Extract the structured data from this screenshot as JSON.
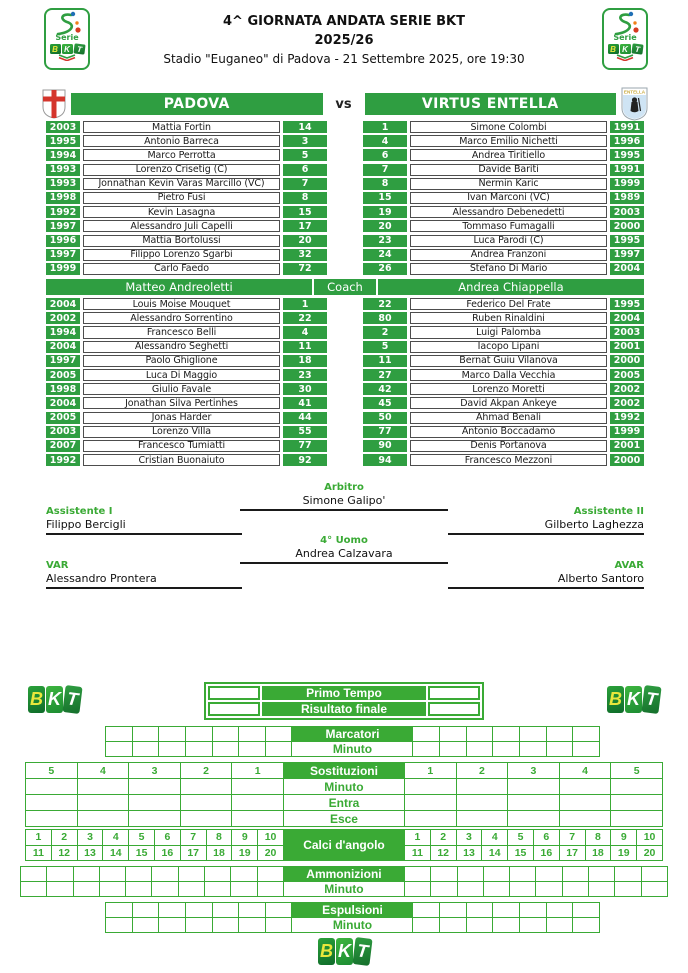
{
  "header": {
    "competition": "4^ GIORNATA ANDATA SERIE BKT",
    "season": "2025/26",
    "venue_line": "Stadio \"Euganeo\" di Padova - 21 Settembre 2025, ore 19:30"
  },
  "teams": {
    "home_name": "PADOVA",
    "away_name": "VIRTUS ENTELLA",
    "vs_label": "vs",
    "coach_label": "Coach",
    "home_coach": "Matteo Andreoletti",
    "away_coach": "Andrea Chiappella"
  },
  "home_starters": [
    {
      "year": "2003",
      "name": "Mattia Fortin",
      "num": "14"
    },
    {
      "year": "1995",
      "name": "Antonio Barreca",
      "num": "3"
    },
    {
      "year": "1994",
      "name": "Marco Perrotta",
      "num": "5"
    },
    {
      "year": "1993",
      "name": "Lorenzo Crisetig (C)",
      "num": "6"
    },
    {
      "year": "1993",
      "name": "Jonnathan Kevin Varas Marcillo (VC)",
      "num": "7"
    },
    {
      "year": "1998",
      "name": "Pietro Fusi",
      "num": "8"
    },
    {
      "year": "1992",
      "name": "Kevin Lasagna",
      "num": "15"
    },
    {
      "year": "1997",
      "name": "Alessandro Juli Capelli",
      "num": "17"
    },
    {
      "year": "1996",
      "name": "Mattia Bortolussi",
      "num": "20"
    },
    {
      "year": "1997",
      "name": "Filippo Lorenzo Sgarbi",
      "num": "32"
    },
    {
      "year": "1999",
      "name": "Carlo Faedo",
      "num": "72"
    }
  ],
  "away_starters": [
    {
      "num": "1",
      "name": "Simone Colombi",
      "year": "1991"
    },
    {
      "num": "4",
      "name": "Marco Emilio Nichetti",
      "year": "1996"
    },
    {
      "num": "6",
      "name": "Andrea Tiritiello",
      "year": "1995"
    },
    {
      "num": "7",
      "name": "Davide Bariti",
      "year": "1991"
    },
    {
      "num": "8",
      "name": "Nermin Karic",
      "year": "1999"
    },
    {
      "num": "15",
      "name": "Ivan Marconi (VC)",
      "year": "1989"
    },
    {
      "num": "19",
      "name": "Alessandro Debenedetti",
      "year": "2003"
    },
    {
      "num": "20",
      "name": "Tommaso Fumagalli",
      "year": "2000"
    },
    {
      "num": "23",
      "name": "Luca Parodi (C)",
      "year": "1995"
    },
    {
      "num": "24",
      "name": "Andrea Franzoni",
      "year": "1997"
    },
    {
      "num": "26",
      "name": "Stefano Di Mario",
      "year": "2004"
    }
  ],
  "home_bench": [
    {
      "year": "2004",
      "name": "Louis Moise Mouquet",
      "num": "1"
    },
    {
      "year": "2002",
      "name": "Alessandro Sorrentino",
      "num": "22"
    },
    {
      "year": "1994",
      "name": "Francesco Belli",
      "num": "4"
    },
    {
      "year": "2004",
      "name": "Alessandro Seghetti",
      "num": "11"
    },
    {
      "year": "1997",
      "name": "Paolo Ghiglione",
      "num": "18"
    },
    {
      "year": "2005",
      "name": "Luca Di Maggio",
      "num": "23"
    },
    {
      "year": "1998",
      "name": "Giulio Favale",
      "num": "30"
    },
    {
      "year": "2004",
      "name": "Jonathan Silva Pertinhes",
      "num": "41"
    },
    {
      "year": "2005",
      "name": "Jonas Harder",
      "num": "44"
    },
    {
      "year": "2003",
      "name": "Lorenzo Villa",
      "num": "55"
    },
    {
      "year": "2007",
      "name": "Francesco Tumiatti",
      "num": "77"
    },
    {
      "year": "1992",
      "name": "Cristian Buonaiuto",
      "num": "92"
    }
  ],
  "away_bench": [
    {
      "num": "22",
      "name": "Federico Del Frate",
      "year": "1995"
    },
    {
      "num": "80",
      "name": "Ruben Rinaldini",
      "year": "2004"
    },
    {
      "num": "2",
      "name": "Luigi Palomba",
      "year": "2003"
    },
    {
      "num": "5",
      "name": "Iacopo Lipani",
      "year": "2001"
    },
    {
      "num": "11",
      "name": "Bernat Guiu Vilanova",
      "year": "2000"
    },
    {
      "num": "27",
      "name": "Marco Dalla Vecchia",
      "year": "2005"
    },
    {
      "num": "42",
      "name": "Lorenzo Moretti",
      "year": "2002"
    },
    {
      "num": "45",
      "name": "David Akpan Ankeye",
      "year": "2002"
    },
    {
      "num": "50",
      "name": "Ahmad Benali",
      "year": "1992"
    },
    {
      "num": "77",
      "name": "Antonio Boccadamo",
      "year": "1999"
    },
    {
      "num": "90",
      "name": "Denis Portanova",
      "year": "2001"
    },
    {
      "num": "94",
      "name": "Francesco Mezzoni",
      "year": "2000"
    }
  ],
  "officials": {
    "referee_label": "Arbitro",
    "referee": "Simone Galipo'",
    "assistant1_label": "Assistente I",
    "assistant1": "Filippo Bercigli",
    "assistant2_label": "Assistente II",
    "assistant2": "Gilberto Laghezza",
    "fourth_label": "4° Uomo",
    "fourth": "Andrea Calzavara",
    "var_label": "VAR",
    "var": "Alessandro Prontera",
    "avar_label": "AVAR",
    "avar": "Alberto Santoro"
  },
  "sheet": {
    "first_half": "Primo Tempo",
    "final_result": "Risultato finale",
    "scorers": "Marcatori",
    "minute": "Minuto",
    "substitutions": "Sostituzioni",
    "enter": "Entra",
    "exit": "Esce",
    "corners": "Calci d'angolo",
    "bookings": "Ammonizioni",
    "sendings_off": "Espulsioni",
    "sub_slots_left": [
      "5",
      "4",
      "3",
      "2",
      "1"
    ],
    "sub_slots_right": [
      "1",
      "2",
      "3",
      "4",
      "5"
    ],
    "corner_row1": [
      "1",
      "2",
      "3",
      "4",
      "5",
      "6",
      "7",
      "8",
      "9",
      "10"
    ],
    "corner_row2": [
      "11",
      "12",
      "13",
      "14",
      "15",
      "16",
      "17",
      "18",
      "19",
      "20"
    ],
    "scorer_slots_per_side": 7,
    "booking_slots_per_side": 10,
    "expulsion_slots_per_side": 7
  },
  "logos": {
    "serie_label": "Serie",
    "bkt_letters": [
      "B",
      "K",
      "T"
    ]
  },
  "colors": {
    "green_top": "#2f9e41",
    "green_sheet": "#3aaa35",
    "padova_red": "#d4352c",
    "entella_blue": "#cfe4f4"
  }
}
